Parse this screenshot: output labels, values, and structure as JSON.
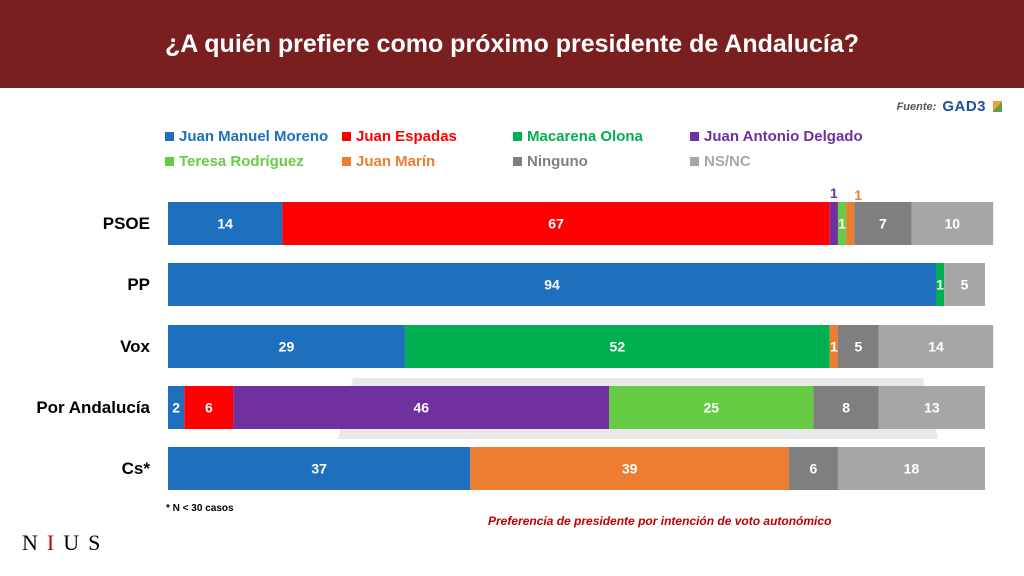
{
  "title": "¿A quién prefiere como próximo presidente de Andalucía?",
  "source": {
    "label": "Fuente:",
    "brand": "GAD3"
  },
  "footnote": "* N < 30 casos",
  "caption": "Preferencia de presidente por intención de voto autonómico",
  "logo": {
    "n": "N",
    "i": "I",
    "u": "U",
    "s": "S"
  },
  "chart_data": {
    "type": "bar",
    "orientation": "horizontal",
    "stacked": true,
    "unit": "%",
    "title": "¿A quién prefiere como próximo presidente de Andalucía?",
    "categories": [
      "PSOE",
      "PP",
      "Vox",
      "Por Andalucía",
      "Cs*"
    ],
    "series": [
      {
        "name": "Juan Manuel Moreno",
        "color": "#1f6fbf",
        "values": [
          14,
          94,
          29,
          2,
          37
        ]
      },
      {
        "name": "Juan Espadas",
        "color": "#ff0000",
        "values": [
          67,
          0,
          0,
          6,
          0
        ]
      },
      {
        "name": "Macarena Olona",
        "color": "#00b050",
        "values": [
          0,
          1,
          52,
          0,
          0
        ]
      },
      {
        "name": "Juan Antonio Delgado",
        "color": "#7030a0",
        "values": [
          1,
          0,
          0,
          46,
          0
        ]
      },
      {
        "name": "Teresa Rodríguez",
        "color": "#66cc44",
        "values": [
          1,
          0,
          0,
          25,
          0
        ]
      },
      {
        "name": "Juan Marín",
        "color": "#ed7d31",
        "values": [
          1,
          0,
          1,
          0,
          39
        ]
      },
      {
        "name": "Ninguno",
        "color": "#7f7f7f",
        "values": [
          7,
          0,
          5,
          8,
          6
        ]
      },
      {
        "name": "NS/NC",
        "color": "#a6a6a6",
        "values": [
          10,
          5,
          14,
          13,
          18
        ]
      }
    ],
    "xlim": [
      0,
      100
    ]
  }
}
